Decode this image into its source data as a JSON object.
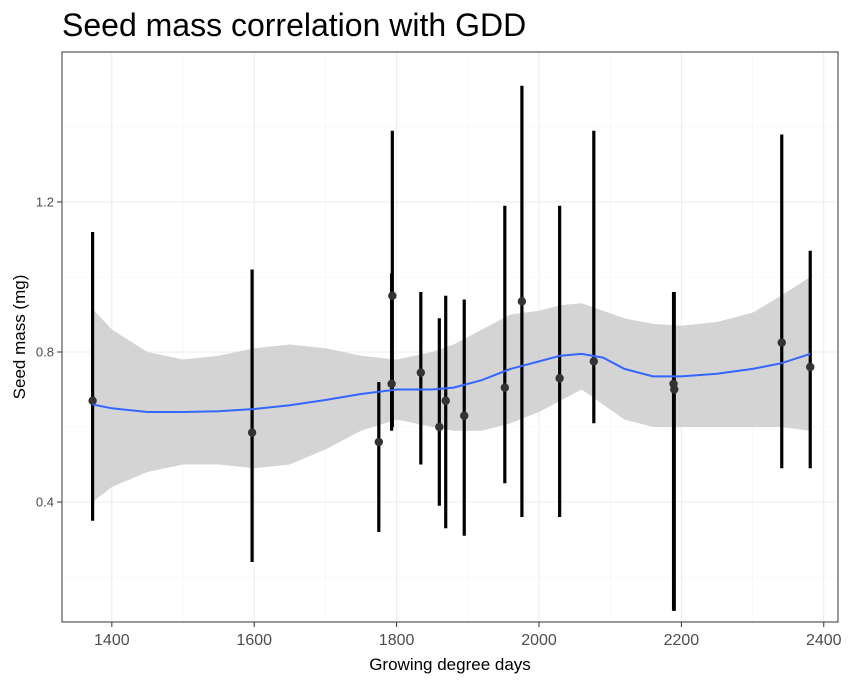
{
  "chart_data": {
    "type": "scatter",
    "title": "Seed mass correlation with GDD",
    "xlabel": "Growing degree days",
    "ylabel": "Seed mass (mg)",
    "xlim": [
      1330,
      2420
    ],
    "ylim": [
      0.08,
      1.6
    ],
    "x_ticks": [
      1400,
      1600,
      1800,
      2000,
      2200,
      2400
    ],
    "y_ticks": [
      0.4,
      0.8,
      1.2
    ],
    "x_tick_labels": [
      "1400",
      "1600",
      "1800",
      "2000",
      "2200",
      "2400"
    ],
    "y_tick_labels": [
      "0.4",
      "0.8",
      "1.2"
    ],
    "grid": true,
    "colors": {
      "points": "#333333",
      "errorbars": "#000000",
      "smooth": "#3366ff",
      "ribbon": "#cccccc"
    },
    "points": [
      {
        "x": 1373,
        "y": 0.67,
        "lo": 0.35,
        "hi": 1.12
      },
      {
        "x": 1597,
        "y": 0.585,
        "lo": 0.24,
        "hi": 1.02
      },
      {
        "x": 1775,
        "y": 0.56,
        "lo": 0.32,
        "hi": 0.72
      },
      {
        "x": 1793,
        "y": 0.715,
        "lo": 0.59,
        "hi": 1.01
      },
      {
        "x": 1794,
        "y": 0.95,
        "lo": 0.6,
        "hi": 1.39
      },
      {
        "x": 1834,
        "y": 0.745,
        "lo": 0.5,
        "hi": 0.96
      },
      {
        "x": 1860,
        "y": 0.6,
        "lo": 0.39,
        "hi": 0.89
      },
      {
        "x": 1869,
        "y": 0.67,
        "lo": 0.33,
        "hi": 0.95
      },
      {
        "x": 1895,
        "y": 0.63,
        "lo": 0.31,
        "hi": 0.94
      },
      {
        "x": 1952,
        "y": 0.705,
        "lo": 0.45,
        "hi": 1.19
      },
      {
        "x": 1976,
        "y": 0.935,
        "lo": 0.36,
        "hi": 1.51
      },
      {
        "x": 2029,
        "y": 0.73,
        "lo": 0.36,
        "hi": 1.19
      },
      {
        "x": 2077,
        "y": 0.775,
        "lo": 0.61,
        "hi": 1.39
      },
      {
        "x": 2189,
        "y": 0.715,
        "lo": 0.11,
        "hi": 0.96
      },
      {
        "x": 2190,
        "y": 0.7,
        "lo": 0.11,
        "hi": 0.96
      },
      {
        "x": 2341,
        "y": 0.825,
        "lo": 0.49,
        "hi": 1.38
      },
      {
        "x": 2381,
        "y": 0.76,
        "lo": 0.49,
        "hi": 1.07
      }
    ],
    "smooth": {
      "x": [
        1373,
        1400,
        1450,
        1500,
        1550,
        1600,
        1650,
        1700,
        1750,
        1800,
        1850,
        1880,
        1920,
        1960,
        2000,
        2030,
        2060,
        2090,
        2120,
        2160,
        2200,
        2250,
        2300,
        2340,
        2381
      ],
      "y": [
        0.66,
        0.65,
        0.64,
        0.64,
        0.642,
        0.648,
        0.658,
        0.672,
        0.688,
        0.7,
        0.7,
        0.705,
        0.725,
        0.755,
        0.775,
        0.79,
        0.795,
        0.785,
        0.755,
        0.735,
        0.735,
        0.742,
        0.755,
        0.77,
        0.795
      ],
      "lo": [
        0.4,
        0.44,
        0.48,
        0.5,
        0.5,
        0.49,
        0.5,
        0.54,
        0.59,
        0.62,
        0.6,
        0.59,
        0.59,
        0.61,
        0.64,
        0.67,
        0.7,
        0.66,
        0.62,
        0.6,
        0.6,
        0.6,
        0.6,
        0.6,
        0.59
      ],
      "hi": [
        0.915,
        0.86,
        0.8,
        0.78,
        0.79,
        0.81,
        0.82,
        0.81,
        0.79,
        0.78,
        0.8,
        0.82,
        0.86,
        0.9,
        0.91,
        0.925,
        0.93,
        0.91,
        0.89,
        0.875,
        0.87,
        0.88,
        0.905,
        0.95,
        1.0
      ]
    }
  }
}
